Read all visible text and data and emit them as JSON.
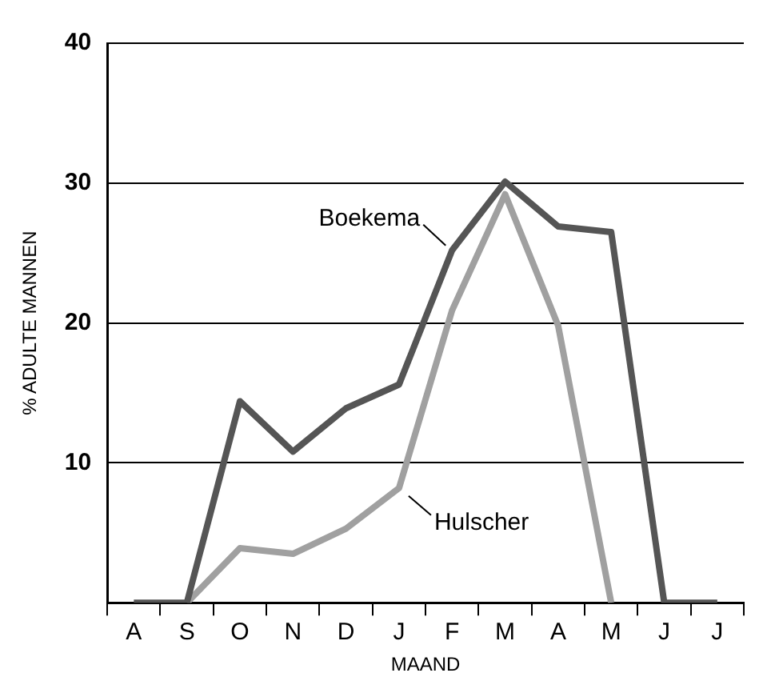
{
  "chart_data": {
    "type": "line",
    "xlabel": "MAAND",
    "ylabel": "% ADULTE MANNEN",
    "categories": [
      "A",
      "S",
      "O",
      "N",
      "D",
      "J",
      "F",
      "M",
      "A",
      "M",
      "J",
      "J"
    ],
    "series": [
      {
        "name": "Boekema",
        "color": "#555555",
        "values": [
          0,
          0,
          14.4,
          10.8,
          13.9,
          15.6,
          25.2,
          30.1,
          26.9,
          26.5,
          0,
          0
        ]
      },
      {
        "name": "Hulscher",
        "color": "#a0a0a0",
        "values": [
          null,
          0,
          3.9,
          3.5,
          5.3,
          8.2,
          20.9,
          29.2,
          19.8,
          0,
          null,
          null
        ]
      }
    ],
    "ylim": [
      0,
      40
    ],
    "yticks": [
      10,
      20,
      30,
      40
    ],
    "grid": "y",
    "legend": false,
    "marker": "none",
    "line_style": "solid"
  }
}
